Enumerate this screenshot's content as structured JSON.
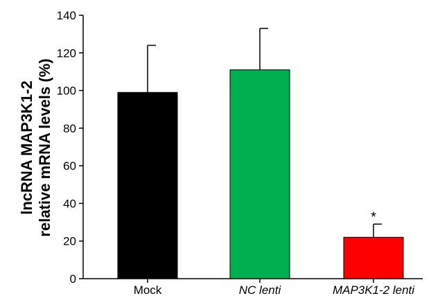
{
  "chart_data": {
    "type": "bar",
    "categories": [
      "Mock",
      "NC lenti",
      "MAP3K1-2 lenti"
    ],
    "category_italic": [
      false,
      true,
      true
    ],
    "values": [
      99,
      111,
      22
    ],
    "errors": [
      25,
      22,
      7
    ],
    "colors": [
      "#000000",
      "#00b050",
      "#ff0000"
    ],
    "ylim": [
      0,
      140
    ],
    "yticks": [
      0,
      20,
      40,
      60,
      80,
      100,
      120,
      140
    ],
    "ylabel_lines": [
      "lncRNA MAP3K1-2",
      "relative mRNA levels (%)"
    ],
    "xlabel": "",
    "title": "",
    "annotations": [
      {
        "category": "MAP3K1-2 lenti",
        "text": "*"
      }
    ]
  }
}
